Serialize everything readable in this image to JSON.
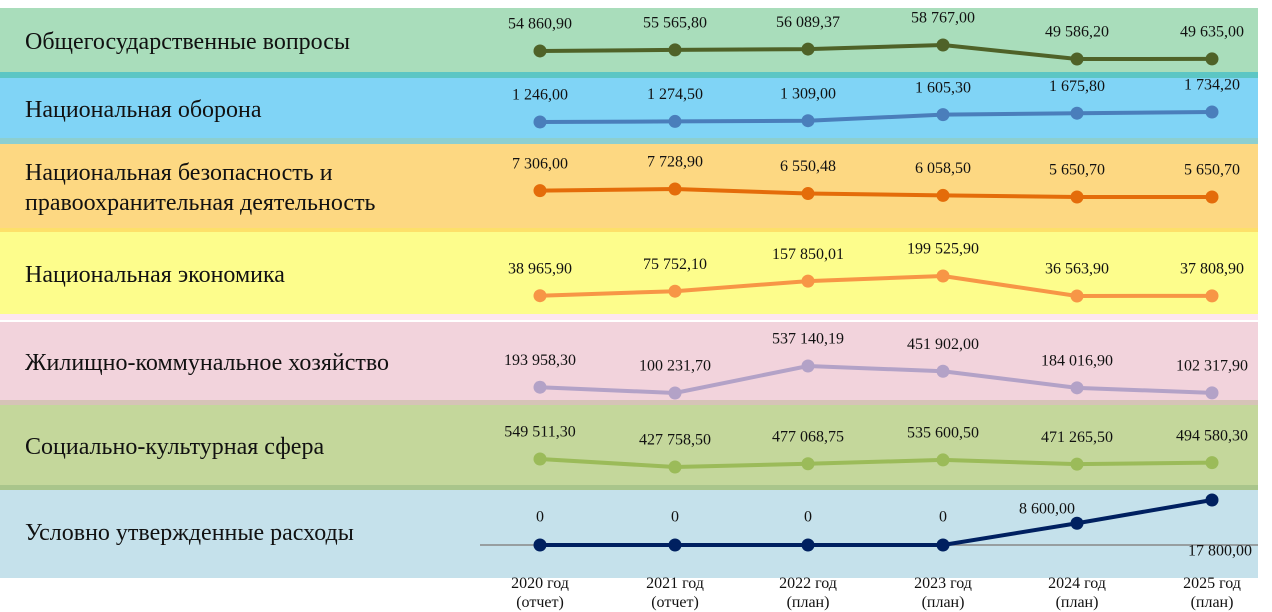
{
  "chart_data": {
    "type": "line",
    "categories": [
      [
        "2020 год",
        "(отчет)"
      ],
      [
        "2021 год",
        "(отчет)"
      ],
      [
        "2022 год",
        "(план)"
      ],
      [
        "2023 год",
        "(план)"
      ],
      [
        "2024 год",
        "(план)"
      ],
      [
        "2025 год",
        "(план)"
      ]
    ],
    "series": [
      {
        "name": "Общегосударственные вопросы",
        "color": "#4f6228",
        "background": "#a9ddbb",
        "values": [
          54860.9,
          55565.8,
          56089.37,
          58767,
          49586.2,
          49635
        ],
        "value_labels": [
          "54 860,90",
          "55 565,80",
          "56 089,37",
          "58 767,00",
          "49 586,20",
          "49 635,00"
        ]
      },
      {
        "name": "Национальная оборона",
        "color": "#4a7ebb",
        "background": "#80d4f6",
        "values": [
          1246,
          1274.5,
          1309,
          1605.3,
          1675.8,
          1734.2
        ],
        "value_labels": [
          "1 246,00",
          "1 274,50",
          "1 309,00",
          "1 605,30",
          "1 675,80",
          "1 734,20"
        ]
      },
      {
        "name": "Национальная безопасность и правоохранительная деятельность",
        "color": "#e46c0a",
        "background": "#fdd882",
        "values": [
          7306,
          7728.9,
          6550.48,
          6058.5,
          5650.7,
          5650.7
        ],
        "value_labels": [
          "7 306,00",
          "7 728,90",
          "6 550,48",
          "6 058,50",
          "5 650,70",
          "5 650,70"
        ]
      },
      {
        "name": "Национальная экономика",
        "color": "#f79646",
        "background": "#fdfd8c",
        "values": [
          38965.9,
          75752.1,
          157850.01,
          199525.9,
          36563.9,
          37808.9
        ],
        "value_labels": [
          "38 965,90",
          "75 752,10",
          "157 850,01",
          "199 525,90",
          "36 563,90",
          "37 808,90"
        ]
      },
      {
        "name": "Жилищно-коммунальное хозяйство",
        "color": "#b3a2c7",
        "background": "#f2d3dc",
        "values": [
          193958.3,
          100231.7,
          537140.19,
          451902,
          184016.9,
          102317.9
        ],
        "value_labels": [
          "193 958,30",
          "100 231,70",
          "537 140,19",
          "451 902,00",
          "184 016,90",
          "102 317,90"
        ]
      },
      {
        "name": "Социально-культурная сфера",
        "color": "#9bbb59",
        "background": "#c4d79b",
        "values": [
          549511.3,
          427758.5,
          477068.75,
          535600.5,
          471265.5,
          494580.3
        ],
        "value_labels": [
          "549 511,30",
          "427 758,50",
          "477 068,75",
          "535 600,50",
          "471 265,50",
          "494 580,30"
        ]
      },
      {
        "name": "Условно утвержденные расходы",
        "color": "#002060",
        "background": "#c5e1eb",
        "values": [
          0,
          0,
          0,
          0,
          8600,
          17800
        ],
        "value_labels": [
          "0",
          "0",
          "0",
          "0",
          "8 600,00",
          "17 800,00"
        ]
      }
    ]
  }
}
